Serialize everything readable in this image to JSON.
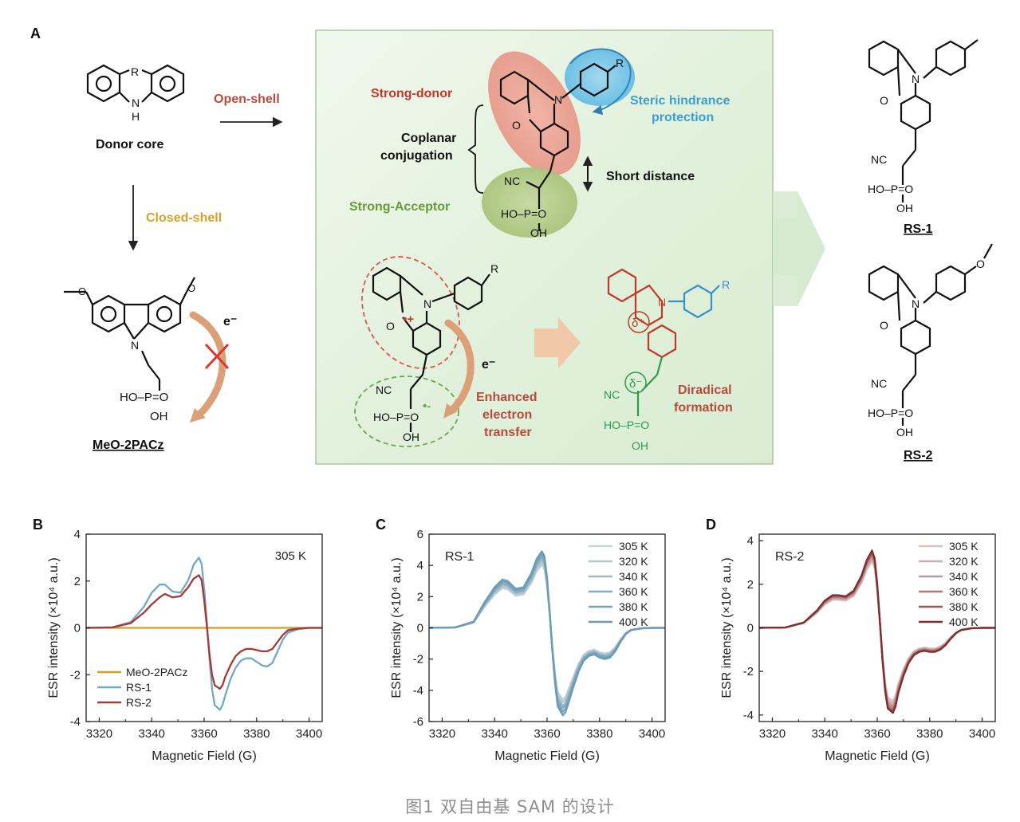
{
  "panel_a": {
    "letter": "A",
    "donor_core": "Donor core",
    "r": "R",
    "n": "N",
    "h": "H",
    "o": "O",
    "open_shell": "Open-shell",
    "closed_shell": "Closed-shell",
    "electron": "e⁻",
    "meo_label": "MeO-2PACz",
    "phos_ho": "HO–P=O",
    "phos_oh": "OH",
    "nc": "NC",
    "strong_donor": "Strong-donor",
    "steric_1": "Steric hindrance",
    "steric_2": "protection",
    "coplanar_1": "Coplanar",
    "coplanar_2": "conjugation",
    "short_distance": "Short distance",
    "strong_acceptor": "Strong-Acceptor",
    "enhanced_1": "Enhanced",
    "enhanced_2": "electron",
    "enhanced_3": "transfer",
    "diradical_1": "Diradical",
    "diradical_2": "formation",
    "delta_plus": "δ⁺",
    "delta_minus": "δ⁻",
    "dot_plus": "•+",
    "dot_minus": "•-",
    "rs1": "RS-1",
    "rs2": "RS-2",
    "colors": {
      "box": "#e4f2df",
      "donor": "#c0392b",
      "acceptor": "#6b9a3a",
      "steric": "#3b9fd0",
      "closed": "#d6a22a"
    }
  },
  "chart_data": [
    {
      "panel": "B",
      "type": "line",
      "annotation": "305 K",
      "xlabel": "Magnetic Field (G)",
      "ylabel": "ESR intensity (×10⁴ a.u.)",
      "xlim": [
        3315,
        3405
      ],
      "ylim": [
        -4,
        4
      ],
      "xticks": [
        3320,
        3340,
        3360,
        3380,
        3400
      ],
      "yticks": [
        -4,
        -2,
        0,
        2,
        4
      ],
      "legend_position": "bottom-left",
      "series": [
        {
          "name": "MeO-2PACz",
          "color": "#c9a227",
          "x": [
            3315,
            3405
          ],
          "y": [
            0,
            0
          ]
        },
        {
          "name": "RS-1",
          "color": "#74a9c6",
          "x": [
            3315,
            3325,
            3332,
            3337,
            3340,
            3343,
            3345,
            3348,
            3351,
            3354,
            3356,
            3358,
            3359,
            3360,
            3361,
            3362,
            3363,
            3364,
            3366,
            3367,
            3368,
            3370,
            3372,
            3374,
            3376,
            3378,
            3380,
            3382,
            3384,
            3386,
            3388,
            3390,
            3392,
            3396,
            3400,
            3405
          ],
          "y": [
            0,
            0.02,
            0.25,
            0.9,
            1.5,
            1.85,
            1.85,
            1.55,
            1.5,
            2.05,
            2.7,
            3.0,
            2.75,
            1.7,
            0.3,
            -1.3,
            -2.6,
            -3.3,
            -3.5,
            -3.3,
            -2.9,
            -2.2,
            -1.7,
            -1.4,
            -1.3,
            -1.3,
            -1.45,
            -1.6,
            -1.65,
            -1.5,
            -1.0,
            -0.5,
            -0.2,
            -0.05,
            0,
            0
          ]
        },
        {
          "name": "RS-2",
          "color": "#a33a3a",
          "x": [
            3315,
            3325,
            3332,
            3337,
            3340,
            3343,
            3345,
            3348,
            3351,
            3354,
            3356,
            3358,
            3359,
            3360,
            3361,
            3362,
            3363,
            3364,
            3366,
            3367,
            3368,
            3370,
            3372,
            3374,
            3376,
            3378,
            3380,
            3382,
            3384,
            3386,
            3388,
            3390,
            3392,
            3396,
            3400,
            3405
          ],
          "y": [
            0,
            0.02,
            0.2,
            0.65,
            1.0,
            1.3,
            1.45,
            1.3,
            1.35,
            1.75,
            2.1,
            2.25,
            2.05,
            1.2,
            0.1,
            -1.1,
            -2.0,
            -2.45,
            -2.6,
            -2.45,
            -2.1,
            -1.6,
            -1.2,
            -1.0,
            -0.9,
            -0.9,
            -0.95,
            -1.0,
            -1.0,
            -0.9,
            -0.6,
            -0.3,
            -0.1,
            -0.03,
            0,
            0
          ]
        }
      ]
    },
    {
      "panel": "C",
      "type": "line",
      "annotation": "RS-1",
      "xlabel": "Magnetic Field (G)",
      "ylabel": "ESR intensity (×10⁴ a.u.)",
      "xlim": [
        3315,
        3405
      ],
      "ylim": [
        -6,
        6
      ],
      "xticks": [
        3320,
        3340,
        3360,
        3380,
        3400
      ],
      "yticks": [
        -6,
        -4,
        -2,
        0,
        2,
        4,
        6
      ],
      "legend_position": "top-right",
      "series": [
        {
          "name": "305 K",
          "color": "#c9d4d9",
          "peak_ratio": 0.82
        },
        {
          "name": "320 K",
          "color": "#b5c8d0",
          "peak_ratio": 0.85
        },
        {
          "name": "340 K",
          "color": "#9fbbc8",
          "peak_ratio": 0.89
        },
        {
          "name": "360 K",
          "color": "#89adbf",
          "peak_ratio": 0.92
        },
        {
          "name": "380 K",
          "color": "#76a1b8",
          "peak_ratio": 0.96
        },
        {
          "name": "400 K",
          "color": "#6b9bb5",
          "peak_ratio": 1.0
        }
      ]
    },
    {
      "panel": "D",
      "type": "line",
      "annotation": "RS-2",
      "xlabel": "Magnetic Field (G)",
      "ylabel": "ESR intensity (×10⁴ a.u.)",
      "xlim": [
        3315,
        3405
      ],
      "ylim": [
        -4.3,
        4.3
      ],
      "xticks": [
        3320,
        3340,
        3360,
        3380,
        3400
      ],
      "yticks": [
        -4,
        -2,
        0,
        2,
        4
      ],
      "legend_position": "top-right",
      "series": [
        {
          "name": "305 K",
          "color": "#d8c4c4",
          "peak_ratio": 0.86
        },
        {
          "name": "320 K",
          "color": "#ccaeae",
          "peak_ratio": 0.89
        },
        {
          "name": "340 K",
          "color": "#c09797",
          "peak_ratio": 0.92
        },
        {
          "name": "360 K",
          "color": "#b07878",
          "peak_ratio": 0.95
        },
        {
          "name": "380 K",
          "color": "#9c5656",
          "peak_ratio": 0.98
        },
        {
          "name": "400 K",
          "color": "#7e2e2e",
          "peak_ratio": 1.0
        }
      ]
    }
  ],
  "caption": "图1 双自由基 SAM 的设计"
}
